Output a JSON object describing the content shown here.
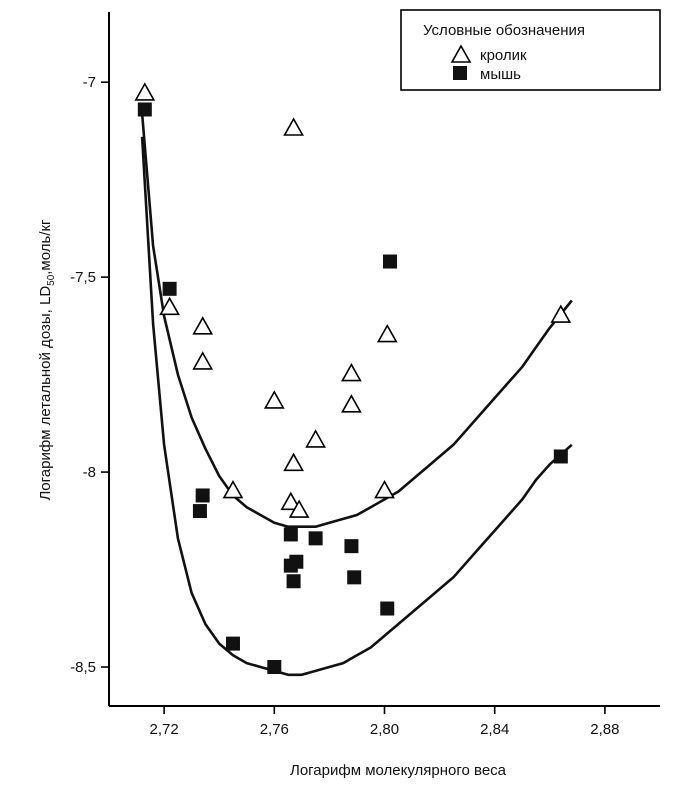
{
  "chart_data": {
    "type": "scatter",
    "xlabel": "Логарифм молекулярного веса",
    "ylabel_main": "Логарифм летальной дозы, LD",
    "ylabel_sub": "50",
    "ylabel_tail": ",моль/кг",
    "xlim": [
      2.7,
      2.9
    ],
    "ylim": [
      -8.6,
      -6.82
    ],
    "x_ticks": [
      {
        "value": 2.72,
        "label": "2,72"
      },
      {
        "value": 2.76,
        "label": "2,76"
      },
      {
        "value": 2.8,
        "label": "2,80"
      },
      {
        "value": 2.84,
        "label": "2,84"
      },
      {
        "value": 2.88,
        "label": "2,88"
      }
    ],
    "y_ticks": [
      {
        "value": -7.0,
        "label": "-7"
      },
      {
        "value": -7.5,
        "label": "-7,5"
      },
      {
        "value": -8.0,
        "label": "-8"
      },
      {
        "value": -8.5,
        "label": "-8,5"
      }
    ],
    "legend": {
      "title": "Условные обозначения",
      "position": "top-right"
    },
    "series": [
      {
        "name": "кролик",
        "marker": "open-triangle",
        "points": [
          [
            2.713,
            -7.03
          ],
          [
            2.722,
            -7.58
          ],
          [
            2.734,
            -7.63
          ],
          [
            2.734,
            -7.72
          ],
          [
            2.745,
            -8.05
          ],
          [
            2.76,
            -7.82
          ],
          [
            2.766,
            -8.08
          ],
          [
            2.767,
            -7.12
          ],
          [
            2.767,
            -7.98
          ],
          [
            2.769,
            -8.1
          ],
          [
            2.775,
            -7.92
          ],
          [
            2.788,
            -7.75
          ],
          [
            2.788,
            -7.83
          ],
          [
            2.8,
            -8.05
          ],
          [
            2.801,
            -7.65
          ],
          [
            2.864,
            -7.6
          ]
        ],
        "fit_curve": [
          [
            2.712,
            -7.08
          ],
          [
            2.716,
            -7.42
          ],
          [
            2.72,
            -7.6
          ],
          [
            2.725,
            -7.75
          ],
          [
            2.73,
            -7.86
          ],
          [
            2.735,
            -7.94
          ],
          [
            2.74,
            -8.01
          ],
          [
            2.745,
            -8.06
          ],
          [
            2.75,
            -8.09
          ],
          [
            2.755,
            -8.11
          ],
          [
            2.76,
            -8.13
          ],
          [
            2.765,
            -8.14
          ],
          [
            2.77,
            -8.14
          ],
          [
            2.775,
            -8.14
          ],
          [
            2.78,
            -8.13
          ],
          [
            2.785,
            -8.12
          ],
          [
            2.79,
            -8.11
          ],
          [
            2.795,
            -8.09
          ],
          [
            2.8,
            -8.07
          ],
          [
            2.805,
            -8.05
          ],
          [
            2.81,
            -8.02
          ],
          [
            2.815,
            -7.99
          ],
          [
            2.82,
            -7.96
          ],
          [
            2.825,
            -7.93
          ],
          [
            2.83,
            -7.89
          ],
          [
            2.835,
            -7.85
          ],
          [
            2.84,
            -7.81
          ],
          [
            2.845,
            -7.77
          ],
          [
            2.85,
            -7.73
          ],
          [
            2.855,
            -7.68
          ],
          [
            2.86,
            -7.63
          ],
          [
            2.868,
            -7.56
          ]
        ]
      },
      {
        "name": "мышь",
        "marker": "filled-square",
        "points": [
          [
            2.713,
            -7.07
          ],
          [
            2.722,
            -7.53
          ],
          [
            2.733,
            -8.1
          ],
          [
            2.734,
            -8.06
          ],
          [
            2.745,
            -8.44
          ],
          [
            2.76,
            -8.5
          ],
          [
            2.766,
            -8.16
          ],
          [
            2.766,
            -8.24
          ],
          [
            2.767,
            -8.28
          ],
          [
            2.768,
            -8.23
          ],
          [
            2.775,
            -8.17
          ],
          [
            2.788,
            -8.19
          ],
          [
            2.789,
            -8.27
          ],
          [
            2.801,
            -8.35
          ],
          [
            2.802,
            -7.46
          ],
          [
            2.864,
            -7.96
          ]
        ],
        "fit_curve": [
          [
            2.712,
            -7.14
          ],
          [
            2.716,
            -7.62
          ],
          [
            2.72,
            -7.93
          ],
          [
            2.725,
            -8.17
          ],
          [
            2.73,
            -8.31
          ],
          [
            2.735,
            -8.39
          ],
          [
            2.74,
            -8.44
          ],
          [
            2.745,
            -8.47
          ],
          [
            2.75,
            -8.49
          ],
          [
            2.755,
            -8.5
          ],
          [
            2.76,
            -8.51
          ],
          [
            2.765,
            -8.52
          ],
          [
            2.77,
            -8.52
          ],
          [
            2.775,
            -8.51
          ],
          [
            2.78,
            -8.5
          ],
          [
            2.785,
            -8.49
          ],
          [
            2.79,
            -8.47
          ],
          [
            2.795,
            -8.45
          ],
          [
            2.8,
            -8.42
          ],
          [
            2.805,
            -8.39
          ],
          [
            2.81,
            -8.36
          ],
          [
            2.815,
            -8.33
          ],
          [
            2.82,
            -8.3
          ],
          [
            2.825,
            -8.27
          ],
          [
            2.83,
            -8.23
          ],
          [
            2.835,
            -8.19
          ],
          [
            2.84,
            -8.15
          ],
          [
            2.845,
            -8.11
          ],
          [
            2.85,
            -8.07
          ],
          [
            2.855,
            -8.02
          ],
          [
            2.86,
            -7.98
          ],
          [
            2.868,
            -7.93
          ]
        ]
      }
    ]
  }
}
